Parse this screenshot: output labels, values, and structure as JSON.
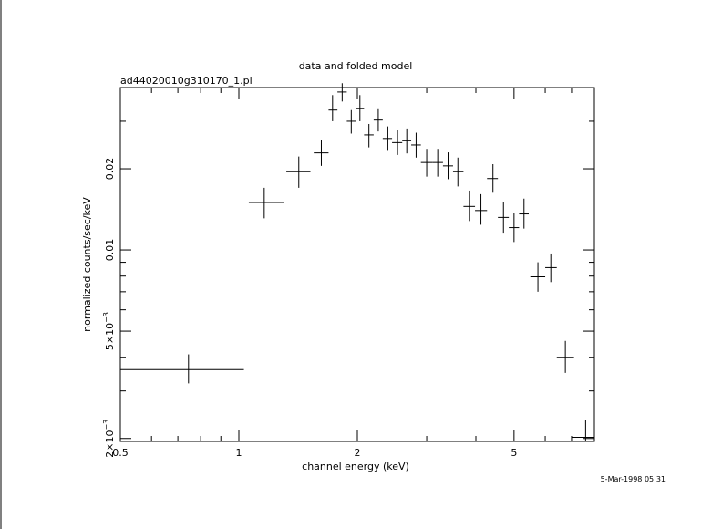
{
  "chart_data": {
    "type": "scatter",
    "title": "data and folded model",
    "subtitle": "ad44020010g310170_1.pi",
    "xlabel": "channel energy (keV)",
    "ylabel": "normalized counts/sec/keV",
    "timestamp": "5-Mar-1998 05:31",
    "x_scale": "log",
    "y_scale": "log",
    "xlim": [
      0.5,
      8.0
    ],
    "ylim": [
      0.00195,
      0.04
    ],
    "x_ticks": [
      {
        "value": 0.5,
        "label": "0.5"
      },
      {
        "value": 1,
        "label": "1"
      },
      {
        "value": 2,
        "label": "2"
      },
      {
        "value": 5,
        "label": "5"
      }
    ],
    "y_ticks": [
      {
        "value": 0.002,
        "label": "2×10",
        "exp": "−3"
      },
      {
        "value": 0.005,
        "label": "5×10",
        "exp": "−3"
      },
      {
        "value": 0.01,
        "label": "0.01",
        "exp": ""
      },
      {
        "value": 0.02,
        "label": "0.02",
        "exp": ""
      }
    ],
    "grid": false,
    "legend": "none",
    "series": [
      {
        "points": [
          {
            "x": 0.745,
            "xlo": 0.5,
            "xhi": 1.03,
            "y": 0.0036,
            "ylo": 0.0032,
            "yhi": 0.0041
          },
          {
            "x": 1.16,
            "xlo": 1.06,
            "xhi": 1.3,
            "y": 0.015,
            "ylo": 0.0131,
            "yhi": 0.017
          },
          {
            "x": 1.42,
            "xlo": 1.32,
            "xhi": 1.52,
            "y": 0.0195,
            "ylo": 0.017,
            "yhi": 0.0222
          },
          {
            "x": 1.62,
            "xlo": 1.55,
            "xhi": 1.69,
            "y": 0.0229,
            "ylo": 0.0205,
            "yhi": 0.0255
          },
          {
            "x": 1.73,
            "xlo": 1.69,
            "xhi": 1.78,
            "y": 0.033,
            "ylo": 0.03,
            "yhi": 0.0375
          },
          {
            "x": 1.83,
            "xlo": 1.78,
            "xhi": 1.88,
            "y": 0.0385,
            "ylo": 0.0355,
            "yhi": 0.0415
          },
          {
            "x": 1.93,
            "xlo": 1.88,
            "xhi": 1.98,
            "y": 0.03,
            "ylo": 0.027,
            "yhi": 0.033
          },
          {
            "x": 2.03,
            "xlo": 1.98,
            "xhi": 2.08,
            "y": 0.0335,
            "ylo": 0.03,
            "yhi": 0.0375
          },
          {
            "x": 2.14,
            "xlo": 2.08,
            "xhi": 2.2,
            "y": 0.0267,
            "ylo": 0.024,
            "yhi": 0.0293
          },
          {
            "x": 2.26,
            "xlo": 2.2,
            "xhi": 2.32,
            "y": 0.0303,
            "ylo": 0.0275,
            "yhi": 0.0335
          },
          {
            "x": 2.39,
            "xlo": 2.32,
            "xhi": 2.45,
            "y": 0.0259,
            "ylo": 0.0233,
            "yhi": 0.0287
          },
          {
            "x": 2.53,
            "xlo": 2.45,
            "xhi": 2.6,
            "y": 0.025,
            "ylo": 0.0225,
            "yhi": 0.0278
          },
          {
            "x": 2.67,
            "xlo": 2.6,
            "xhi": 2.74,
            "y": 0.0254,
            "ylo": 0.0228,
            "yhi": 0.0282
          },
          {
            "x": 2.82,
            "xlo": 2.74,
            "xhi": 2.9,
            "y": 0.0245,
            "ylo": 0.022,
            "yhi": 0.0272
          },
          {
            "x": 3.0,
            "xlo": 2.9,
            "xhi": 3.1,
            "y": 0.0211,
            "ylo": 0.0187,
            "yhi": 0.0237
          },
          {
            "x": 3.2,
            "xlo": 3.1,
            "xhi": 3.3,
            "y": 0.0211,
            "ylo": 0.0187,
            "yhi": 0.0237
          },
          {
            "x": 3.4,
            "xlo": 3.3,
            "xhi": 3.5,
            "y": 0.0205,
            "ylo": 0.0183,
            "yhi": 0.023
          },
          {
            "x": 3.6,
            "xlo": 3.5,
            "xhi": 3.72,
            "y": 0.0195,
            "ylo": 0.0172,
            "yhi": 0.022
          },
          {
            "x": 3.85,
            "xlo": 3.72,
            "xhi": 3.98,
            "y": 0.0145,
            "ylo": 0.0128,
            "yhi": 0.0166
          },
          {
            "x": 4.12,
            "xlo": 3.98,
            "xhi": 4.27,
            "y": 0.014,
            "ylo": 0.0124,
            "yhi": 0.0161
          },
          {
            "x": 4.42,
            "xlo": 4.27,
            "xhi": 4.55,
            "y": 0.0184,
            "ylo": 0.0163,
            "yhi": 0.0208
          },
          {
            "x": 4.7,
            "xlo": 4.55,
            "xhi": 4.85,
            "y": 0.0132,
            "ylo": 0.0115,
            "yhi": 0.015
          },
          {
            "x": 5.0,
            "xlo": 4.85,
            "xhi": 5.15,
            "y": 0.0121,
            "ylo": 0.0107,
            "yhi": 0.0137
          },
          {
            "x": 5.3,
            "xlo": 5.15,
            "xhi": 5.45,
            "y": 0.0136,
            "ylo": 0.012,
            "yhi": 0.0155
          },
          {
            "x": 5.75,
            "xlo": 5.5,
            "xhi": 6.0,
            "y": 0.00795,
            "ylo": 0.007,
            "yhi": 0.009
          },
          {
            "x": 6.2,
            "xlo": 6.0,
            "xhi": 6.42,
            "y": 0.0086,
            "ylo": 0.0076,
            "yhi": 0.0097
          },
          {
            "x": 6.75,
            "xlo": 6.42,
            "xhi": 7.1,
            "y": 0.004,
            "ylo": 0.0035,
            "yhi": 0.0046
          },
          {
            "x": 7.6,
            "xlo": 7.0,
            "xhi": 8.0,
            "y": 0.00202,
            "ylo": 0.00195,
            "yhi": 0.00235
          }
        ]
      }
    ]
  }
}
